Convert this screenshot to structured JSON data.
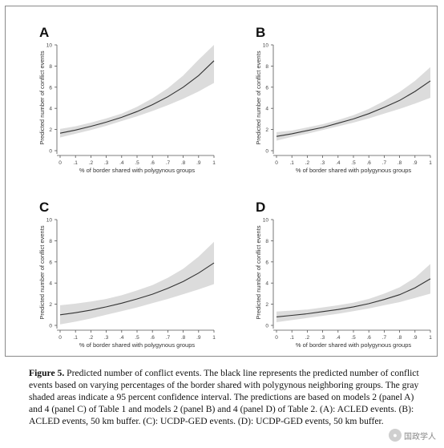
{
  "chart_data": [
    {
      "panel": "A",
      "type": "line",
      "xlabel": "% of border shared with polygynous groups",
      "ylabel": "Predicted number of conflict events",
      "xlim": [
        0,
        1
      ],
      "ylim": [
        0,
        10
      ],
      "xticks": [
        "0",
        ".1",
        ".2",
        ".3",
        ".4",
        ".5",
        ".6",
        ".7",
        ".8",
        ".9",
        "1"
      ],
      "yticks": [
        "0",
        "2",
        "4",
        "6",
        "8",
        "10"
      ],
      "x": [
        0,
        0.1,
        0.2,
        0.3,
        0.4,
        0.5,
        0.6,
        0.7,
        0.8,
        0.9,
        1.0
      ],
      "y": [
        1.65,
        1.95,
        2.3,
        2.7,
        3.15,
        3.7,
        4.35,
        5.1,
        6.0,
        7.1,
        8.5
      ],
      "lower": [
        1.25,
        1.6,
        1.95,
        2.35,
        2.8,
        3.25,
        3.75,
        4.3,
        4.9,
        5.6,
        6.4
      ],
      "upper": [
        2.05,
        2.3,
        2.65,
        3.05,
        3.5,
        4.15,
        4.95,
        5.9,
        7.1,
        8.6,
        10.0
      ]
    },
    {
      "panel": "B",
      "type": "line",
      "xlabel": "% of border shared with polygynous groups",
      "ylabel": "Predicted number of conflict events",
      "xlim": [
        0,
        1
      ],
      "ylim": [
        0,
        10
      ],
      "xticks": [
        "0",
        ".1",
        ".2",
        ".3",
        ".4",
        ".5",
        ".6",
        ".7",
        ".8",
        ".9",
        "1"
      ],
      "yticks": [
        "0",
        "2",
        "4",
        "6",
        "8",
        "10"
      ],
      "x": [
        0,
        0.1,
        0.2,
        0.3,
        0.4,
        0.5,
        0.6,
        0.7,
        0.8,
        0.9,
        1.0
      ],
      "y": [
        1.35,
        1.6,
        1.9,
        2.2,
        2.6,
        3.0,
        3.5,
        4.1,
        4.75,
        5.6,
        6.6
      ],
      "lower": [
        0.95,
        1.3,
        1.6,
        1.95,
        2.3,
        2.65,
        3.05,
        3.5,
        3.95,
        4.45,
        5.0
      ],
      "upper": [
        1.75,
        1.9,
        2.2,
        2.5,
        2.9,
        3.35,
        3.95,
        4.7,
        5.55,
        6.6,
        7.9
      ]
    },
    {
      "panel": "C",
      "type": "line",
      "xlabel": "% of border shared with polygynous groups",
      "ylabel": "Predicted number of conflict events",
      "xlim": [
        0,
        1
      ],
      "ylim": [
        0,
        10
      ],
      "xticks": [
        "0",
        ".1",
        ".2",
        ".3",
        ".4",
        ".5",
        ".6",
        ".7",
        ".8",
        ".9",
        "1"
      ],
      "yticks": [
        "0",
        "2",
        "4",
        "6",
        "8",
        "10"
      ],
      "x": [
        0,
        0.1,
        0.2,
        0.3,
        0.4,
        0.5,
        0.6,
        0.7,
        0.8,
        0.9,
        1.0
      ],
      "y": [
        1.0,
        1.2,
        1.45,
        1.75,
        2.1,
        2.5,
        2.95,
        3.5,
        4.15,
        4.95,
        5.9
      ],
      "lower": [
        0.1,
        0.35,
        0.65,
        1.0,
        1.35,
        1.7,
        2.1,
        2.5,
        2.95,
        3.4,
        3.9
      ],
      "upper": [
        1.9,
        2.05,
        2.25,
        2.5,
        2.85,
        3.3,
        3.8,
        4.5,
        5.35,
        6.5,
        7.9
      ]
    },
    {
      "panel": "D",
      "type": "line",
      "xlabel": "% of border shared with polygynous groups",
      "ylabel": "Predicted number of conflict events",
      "xlim": [
        0,
        1
      ],
      "ylim": [
        0,
        10
      ],
      "xticks": [
        "0",
        ".1",
        ".2",
        ".3",
        ".4",
        ".5",
        ".6",
        ".7",
        ".8",
        ".9",
        "1"
      ],
      "yticks": [
        "0",
        "2",
        "4",
        "6",
        "8",
        "10"
      ],
      "x": [
        0,
        0.1,
        0.2,
        0.3,
        0.4,
        0.5,
        0.6,
        0.7,
        0.8,
        0.9,
        1.0
      ],
      "y": [
        0.8,
        0.95,
        1.1,
        1.3,
        1.5,
        1.75,
        2.05,
        2.45,
        2.9,
        3.55,
        4.4
      ],
      "lower": [
        0.3,
        0.5,
        0.7,
        0.9,
        1.1,
        1.35,
        1.6,
        1.9,
        2.2,
        2.6,
        3.0
      ],
      "upper": [
        1.3,
        1.4,
        1.5,
        1.7,
        1.9,
        2.15,
        2.5,
        3.0,
        3.6,
        4.5,
        5.8
      ]
    }
  ],
  "caption": {
    "lead": "Figure 5.",
    "text": " Predicted number of conflict events. The black line represents the predicted number of conflict events based on varying percentages of the border shared with polygynous neighboring groups. The gray shaded areas indicate a 95 percent confidence interval. The predictions are based on models 2 (panel A) and 4 (panel C) of Table 1 and models 2 (panel B) and 4 (panel D) of Table 2. (A): ACLED events. (B): ACLED events, 50 km buffer. (C): UCDP-GED events. (D): UCDP-GED events, 50 km buffer."
  },
  "watermark": {
    "text": "国政学人"
  },
  "colors": {
    "band": "#dcdcdc",
    "line": "#333333",
    "axis": "#555555",
    "tick_text": "#444444"
  }
}
